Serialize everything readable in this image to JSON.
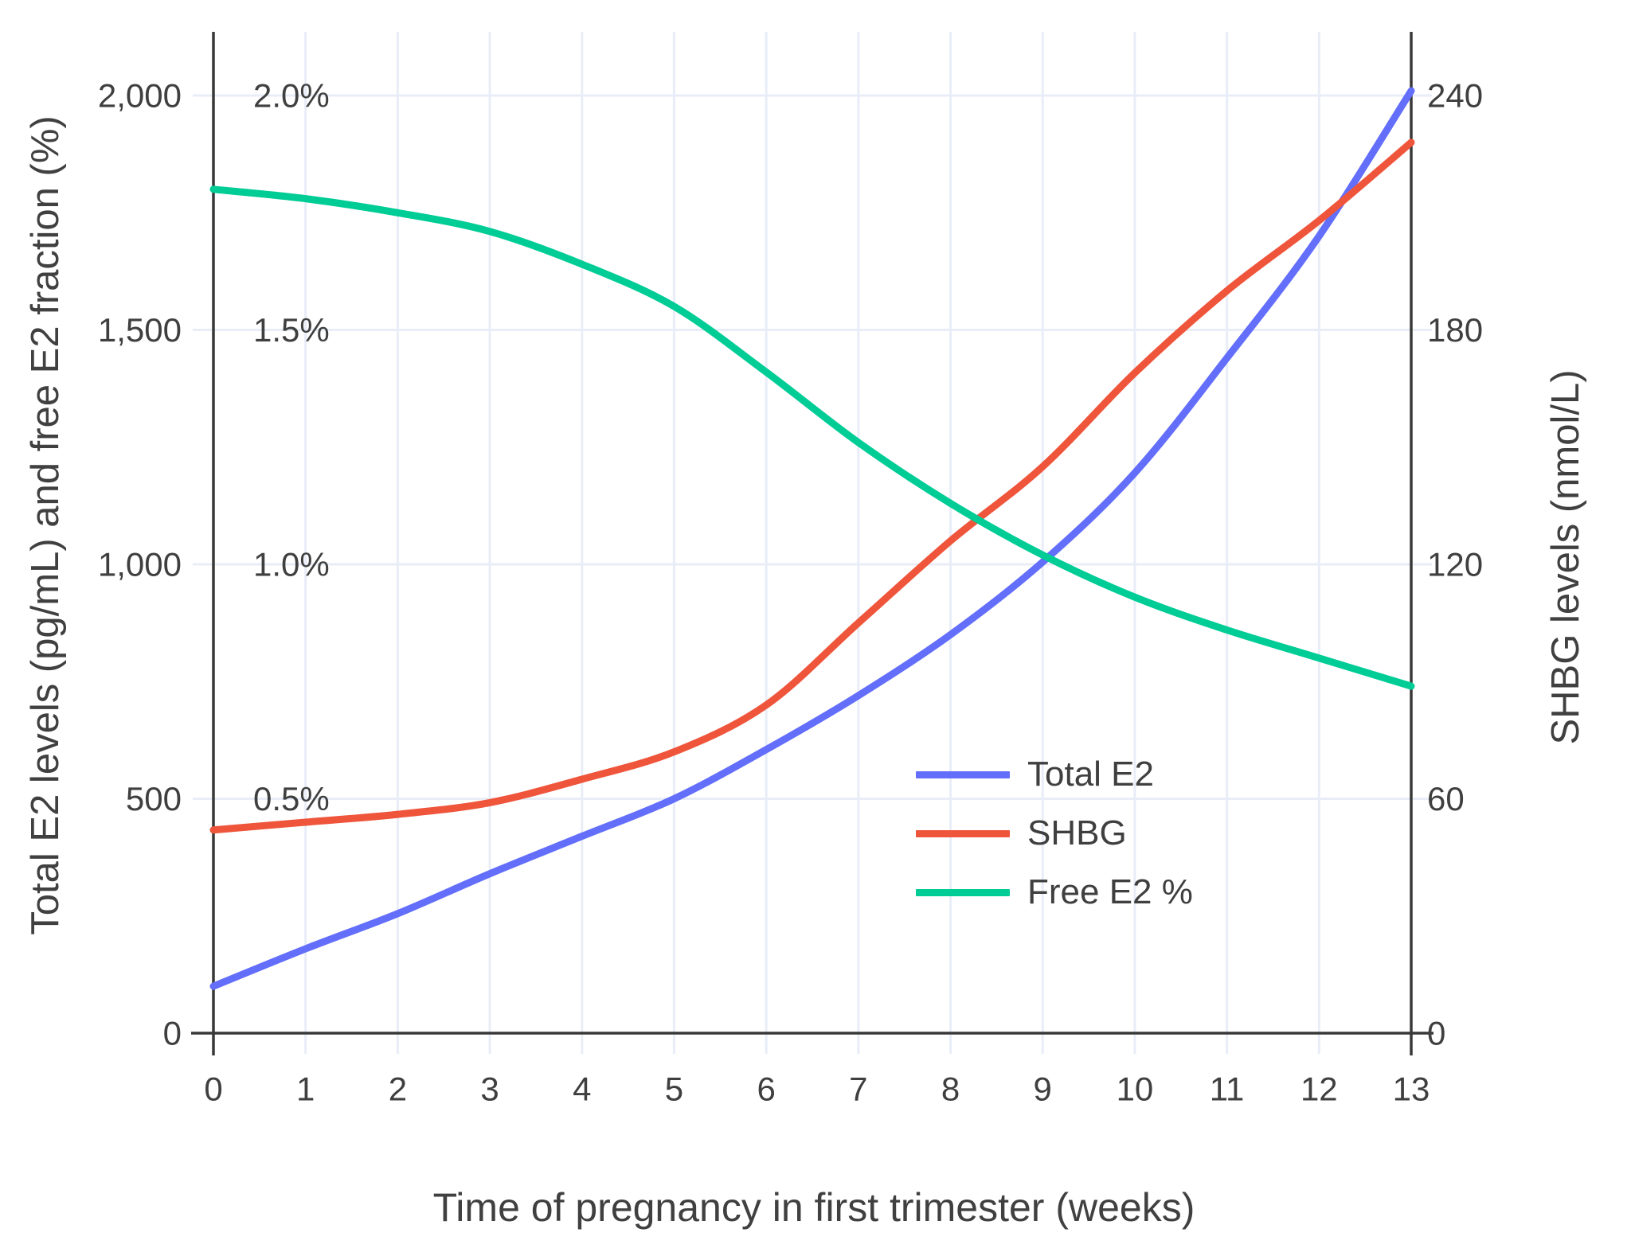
{
  "chart_data": {
    "type": "line",
    "xlabel": "Time of pregnancy in first trimester (weeks)",
    "ylabel_left": "Total E2 levels (pg/mL) and free E2 fraction (%)",
    "ylabel_right": "SHBG levels (nmol/L)",
    "x": [
      0,
      1,
      2,
      3,
      4,
      5,
      6,
      7,
      8,
      9,
      10,
      11,
      12,
      13
    ],
    "xlim": [
      0,
      13
    ],
    "ylim_left": [
      0,
      2136
    ],
    "ylim_right": [
      0,
      256
    ],
    "grid": true,
    "legend_position": "inside-right-middle",
    "series": [
      {
        "name": "Total E2",
        "axis": "left",
        "units": "pg/mL",
        "color": "#636EFA",
        "values": [
          100,
          180,
          255,
          340,
          420,
          500,
          605,
          720,
          850,
          1005,
          1195,
          1440,
          1700,
          2010
        ]
      },
      {
        "name": "SHBG",
        "axis": "right",
        "units": "nmol/L",
        "color": "#EF553B",
        "values": [
          52,
          54,
          56,
          59,
          65,
          72,
          84,
          105,
          126,
          145,
          169,
          190,
          208,
          228
        ]
      },
      {
        "name": "Free E2 %",
        "axis": "percent",
        "units": "%",
        "color": "#00CC96",
        "values": [
          1.8,
          1.78,
          1.75,
          1.71,
          1.64,
          1.55,
          1.41,
          1.26,
          1.13,
          1.02,
          0.93,
          0.86,
          0.8,
          0.74
        ]
      }
    ],
    "left_ticks": [
      {
        "value": 0,
        "label": "0"
      },
      {
        "value": 500,
        "label": "500"
      },
      {
        "value": 1000,
        "label": "1,000"
      },
      {
        "value": 1500,
        "label": "1,500"
      },
      {
        "value": 2000,
        "label": "2,000"
      }
    ],
    "right_ticks": [
      {
        "value": 0,
        "label": "0"
      },
      {
        "value": 60,
        "label": "60"
      },
      {
        "value": 120,
        "label": "120"
      },
      {
        "value": 180,
        "label": "180"
      },
      {
        "value": 240,
        "label": "240"
      }
    ],
    "percent_annotations": [
      {
        "value": 500,
        "label": "0.5%"
      },
      {
        "value": 1000,
        "label": "1.0%"
      },
      {
        "value": 1500,
        "label": "1.5%"
      },
      {
        "value": 2000,
        "label": "2.0%"
      }
    ],
    "colors": {
      "grid": "#e8edf7",
      "axis_line": "#383838",
      "text": "#3f3f3f",
      "background": "#ffffff"
    }
  }
}
